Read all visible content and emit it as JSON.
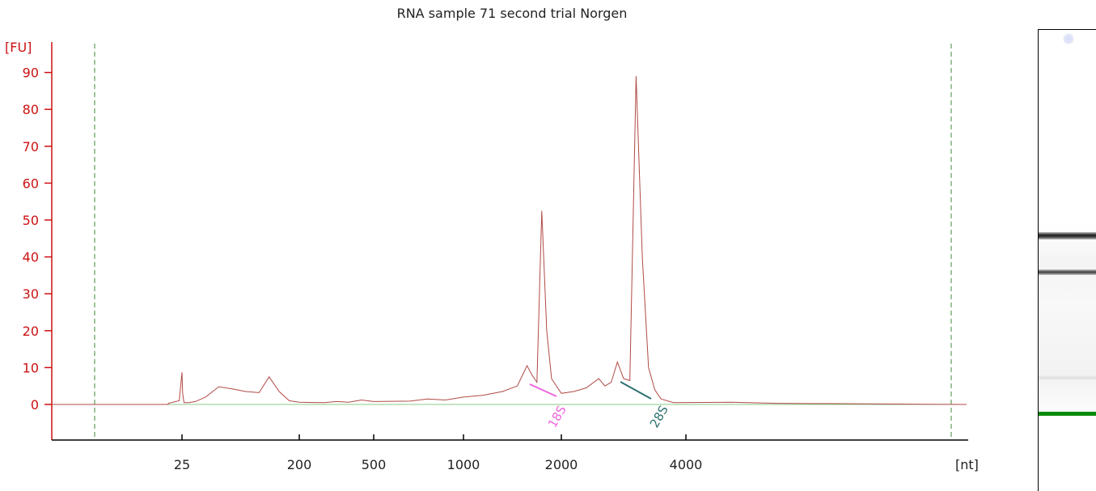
{
  "chart_data": {
    "type": "line",
    "title": "RNA sample 71 second trial Norgen",
    "ylabel": "[FU]",
    "xlabel": "[nt]",
    "ylim": [
      -9,
      100
    ],
    "yticks": [
      0,
      10,
      20,
      30,
      40,
      50,
      60,
      70,
      80,
      90
    ],
    "x_tick_labels": [
      "25",
      "200",
      "500",
      "1000",
      "2000",
      "4000"
    ],
    "x_axis_scale": "nonlinear (migration time)",
    "grid": false,
    "baseline": 0,
    "marker_lines": [
      "lower marker",
      "upper marker"
    ],
    "peak_labels": [
      {
        "label": "18S",
        "color": "#ee66dd"
      },
      {
        "label": "28S",
        "color": "#2e7070"
      }
    ],
    "series": [
      {
        "color": "#b04a44",
        "points": [
          {
            "x": 20,
            "y": 0.3
          },
          {
            "x": 24,
            "y": 1
          },
          {
            "x": 25,
            "y": 8.7
          },
          {
            "x": 26,
            "y": 3
          },
          {
            "x": 28,
            "y": 0.5
          },
          {
            "x": 35,
            "y": 0.5
          },
          {
            "x": 45,
            "y": 0.8
          },
          {
            "x": 60,
            "y": 2
          },
          {
            "x": 80,
            "y": 4.8
          },
          {
            "x": 100,
            "y": 4.2
          },
          {
            "x": 120,
            "y": 3.5
          },
          {
            "x": 140,
            "y": 3.2
          },
          {
            "x": 155,
            "y": 7.5
          },
          {
            "x": 170,
            "y": 3.5
          },
          {
            "x": 185,
            "y": 1
          },
          {
            "x": 200,
            "y": 0.6
          },
          {
            "x": 300,
            "y": 0.5
          },
          {
            "x": 350,
            "y": 0.8
          },
          {
            "x": 400,
            "y": 0.6
          },
          {
            "x": 450,
            "y": 1.2
          },
          {
            "x": 500,
            "y": 0.8
          },
          {
            "x": 700,
            "y": 0.9
          },
          {
            "x": 800,
            "y": 1.5
          },
          {
            "x": 900,
            "y": 1.2
          },
          {
            "x": 1000,
            "y": 2
          },
          {
            "x": 1200,
            "y": 2.5
          },
          {
            "x": 1400,
            "y": 3.5
          },
          {
            "x": 1550,
            "y": 5
          },
          {
            "x": 1650,
            "y": 10.5
          },
          {
            "x": 1700,
            "y": 8
          },
          {
            "x": 1750,
            "y": 6
          },
          {
            "x": 1800,
            "y": 52.5
          },
          {
            "x": 1850,
            "y": 20
          },
          {
            "x": 1900,
            "y": 7
          },
          {
            "x": 2000,
            "y": 3
          },
          {
            "x": 2200,
            "y": 3.5
          },
          {
            "x": 2400,
            "y": 4.5
          },
          {
            "x": 2600,
            "y": 7
          },
          {
            "x": 2700,
            "y": 5
          },
          {
            "x": 2800,
            "y": 6
          },
          {
            "x": 2900,
            "y": 11.5
          },
          {
            "x": 3000,
            "y": 7
          },
          {
            "x": 3100,
            "y": 6.5
          },
          {
            "x": 3200,
            "y": 89
          },
          {
            "x": 3300,
            "y": 40
          },
          {
            "x": 3400,
            "y": 10
          },
          {
            "x": 3500,
            "y": 4
          },
          {
            "x": 3600,
            "y": 1.5
          },
          {
            "x": 3800,
            "y": 0.5
          },
          {
            "x": 5000,
            "y": 0.6
          },
          {
            "x": 6000,
            "y": 0.3
          }
        ]
      }
    ]
  }
}
